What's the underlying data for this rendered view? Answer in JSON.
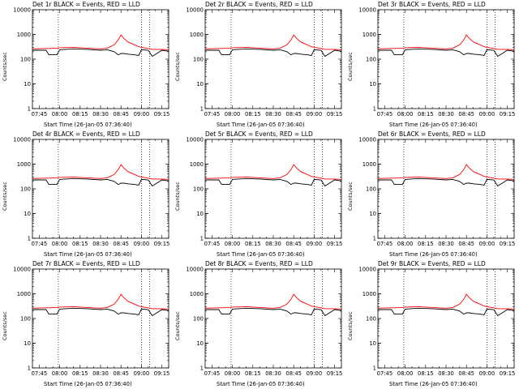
{
  "colors": {
    "events": "#000000",
    "lld": "#ff0000",
    "axis": "#000000",
    "background": "#ffffff"
  },
  "axes": {
    "ylabel": "Counts/sec",
    "xlabel": "Start Time (26-Jan-05 07:36:40)",
    "yscale": "log",
    "ylim": [
      1,
      10000
    ],
    "yticks": [
      1,
      10,
      100,
      1000,
      10000
    ],
    "ytick_labels": [
      "1",
      "10",
      "100",
      "1000",
      "10000"
    ],
    "xlim": [
      "07:40",
      "09:20"
    ],
    "xticks": [
      "07:45",
      "08:00",
      "08:15",
      "08:30",
      "08:45",
      "09:00",
      "09:15"
    ],
    "vlines": [
      "07:59",
      "09:00",
      "09:06"
    ]
  },
  "panels": [
    {
      "title": "Det 1r BLACK = Events, RED = LLD"
    },
    {
      "title": "Det 2r BLACK = Events, RED = LLD"
    },
    {
      "title": "Det 3r BLACK = Events, RED = LLD"
    },
    {
      "title": "Det 4r BLACK = Events, RED = LLD"
    },
    {
      "title": "Det 5r BLACK = Events, RED = LLD"
    },
    {
      "title": "Det 6r BLACK = Events, RED = LLD"
    },
    {
      "title": "Det 7r BLACK = Events, RED = LLD"
    },
    {
      "title": "Det 8r BLACK = Events, RED = LLD"
    },
    {
      "title": "Det 9r BLACK = Events, RED = LLD"
    }
  ],
  "chart_data": {
    "type": "line",
    "x": [
      "07:40",
      "07:50",
      "07:52",
      "07:58",
      "08:00",
      "08:10",
      "08:20",
      "08:30",
      "08:35",
      "08:40",
      "08:43",
      "08:45",
      "08:47",
      "08:50",
      "08:55",
      "08:58",
      "09:00",
      "09:05",
      "09:08",
      "09:15",
      "09:20"
    ],
    "series": [
      {
        "name": "LLD",
        "values": [
          260,
          270,
          270,
          280,
          290,
          300,
          280,
          260,
          280,
          380,
          600,
          950,
          700,
          500,
          380,
          320,
          300,
          270,
          250,
          250,
          240
        ]
      },
      {
        "name": "Events",
        "values": [
          230,
          230,
          150,
          150,
          240,
          260,
          250,
          230,
          240,
          200,
          150,
          170,
          170,
          160,
          150,
          140,
          240,
          230,
          130,
          230,
          210
        ]
      }
    ]
  }
}
